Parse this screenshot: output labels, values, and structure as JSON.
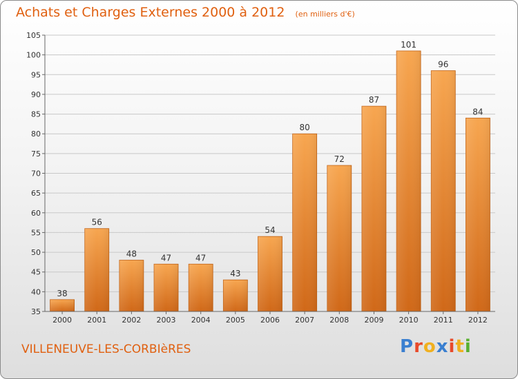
{
  "chart_data": {
    "type": "bar",
    "title": "Achats et Charges Externes 2000 à 2012",
    "subtitle": "(en milliers d'€)",
    "categories": [
      "2000",
      "2001",
      "2002",
      "2003",
      "2004",
      "2005",
      "2006",
      "2007",
      "2008",
      "2009",
      "2010",
      "2011",
      "2012"
    ],
    "values": [
      38,
      56,
      48,
      47,
      47,
      43,
      54,
      80,
      72,
      87,
      101,
      96,
      84
    ],
    "ylim": [
      35,
      105
    ],
    "yticks": [
      35,
      40,
      45,
      50,
      55,
      60,
      65,
      70,
      75,
      80,
      85,
      90,
      95,
      100,
      105
    ],
    "grid": true,
    "bar_color": "#f0902a"
  },
  "footer": {
    "commune": "VILLENEUVE-LES-CORBIèRES",
    "logo_letters": [
      "P",
      "r",
      "o",
      "x",
      "i",
      "t",
      "i"
    ],
    "logo_colors": [
      "#3a7fd0",
      "#e84a2a",
      "#f0b020",
      "#3a7fd0",
      "#e84a2a",
      "#f0b020",
      "#58b030"
    ]
  }
}
